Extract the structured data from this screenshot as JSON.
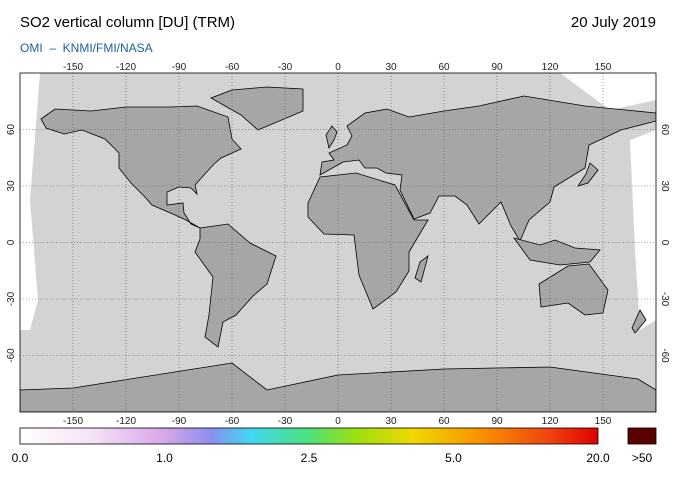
{
  "header": {
    "title": "SO2 vertical column [DU] (TRM)",
    "subtitle": "OMI  –  KNMI/FMI/NASA",
    "date": "20 July 2019"
  },
  "map": {
    "lonlim": [
      -180,
      180
    ],
    "latlim": [
      -90,
      90
    ],
    "lon_ticks": [
      -150,
      -120,
      -90,
      -60,
      -30,
      0,
      30,
      60,
      90,
      120,
      150
    ],
    "lat_ticks": [
      60,
      30,
      0,
      -30,
      -60
    ]
  },
  "colorbar": {
    "labels": [
      "0.0",
      "1.0",
      "2.5",
      "5.0",
      "20.0"
    ],
    "overflow_label": ">50"
  }
}
